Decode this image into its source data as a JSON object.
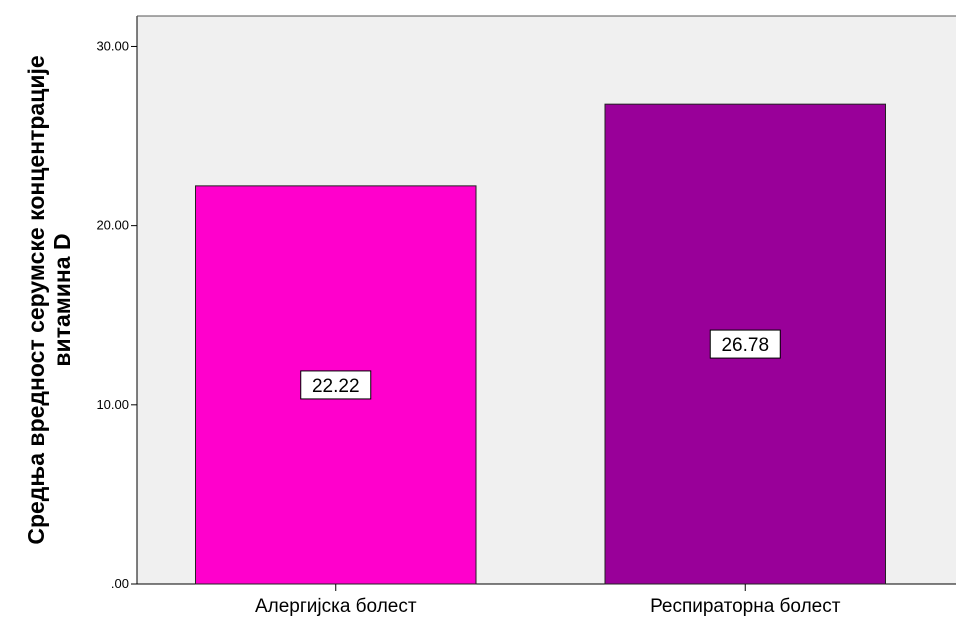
{
  "chart_data": {
    "type": "bar",
    "categories": [
      "Алергијска болест",
      "Респираторна болест"
    ],
    "values": [
      22.22,
      26.78
    ],
    "data_labels": [
      "22.22",
      "26.78"
    ],
    "colors": [
      "#ff00cc",
      "#990099"
    ],
    "title": "",
    "xlabel": "",
    "ylabel_lines": [
      "Средња вредност серумске концентрације",
      "витамина D"
    ],
    "ylim": [
      0,
      31.7
    ],
    "yticks": [
      0,
      10,
      20,
      30
    ],
    "ytick_labels": [
      ".00",
      "10.00",
      "20.00",
      "30.00"
    ],
    "grid": false,
    "plot_background": "#f0f0f0",
    "legend": "none"
  }
}
